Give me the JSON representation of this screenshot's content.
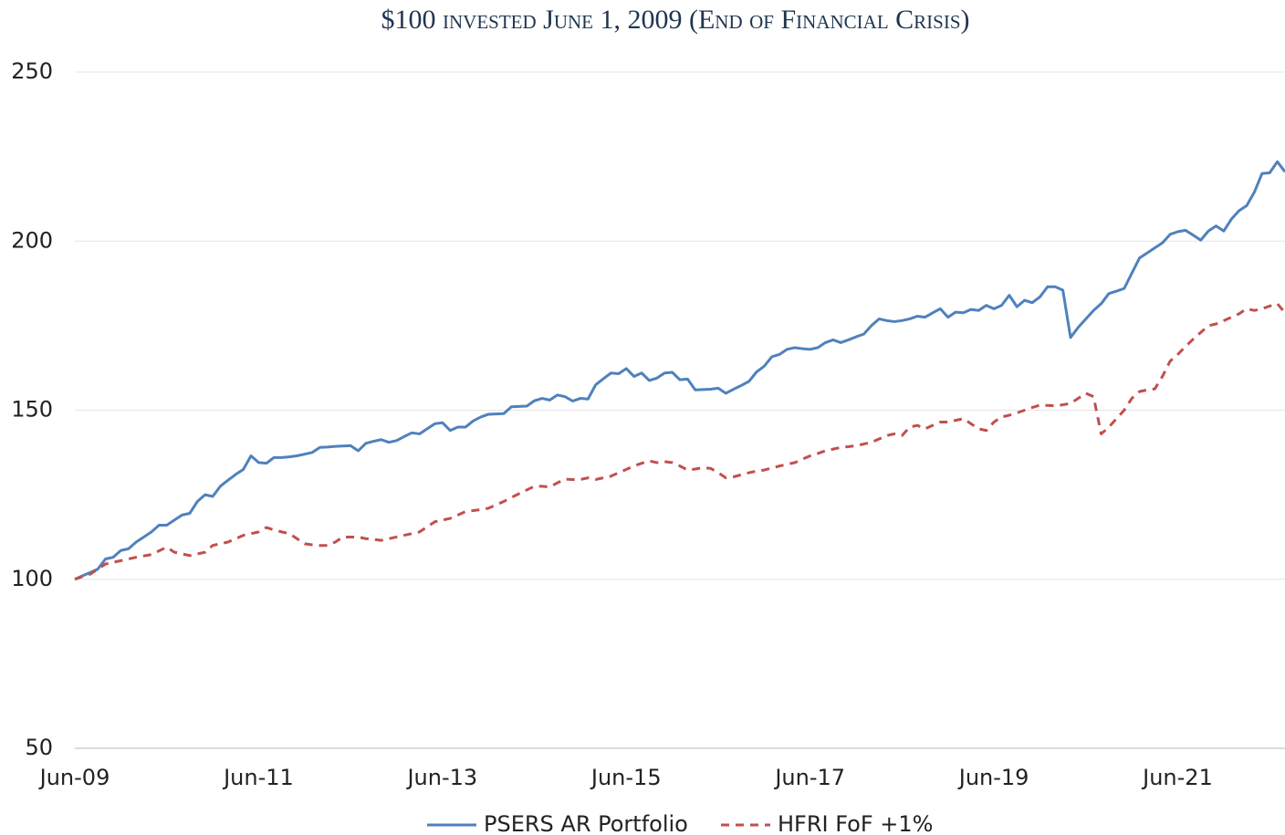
{
  "chart_data": {
    "type": "line",
    "title": "$100 invested June 1, 2009 (End of Financial Crisis)",
    "categories": [
      "Jun-09",
      null,
      null,
      null,
      null,
      null,
      null,
      null,
      null,
      null,
      null,
      null,
      null,
      null,
      null,
      null,
      null,
      null,
      null,
      null,
      null,
      null,
      null,
      null,
      "Jun-11",
      null,
      null,
      null,
      null,
      null,
      null,
      null,
      null,
      null,
      null,
      null,
      null,
      null,
      null,
      null,
      null,
      null,
      null,
      null,
      null,
      null,
      null,
      null,
      "Jun-13",
      null,
      null,
      null,
      null,
      null,
      null,
      null,
      null,
      null,
      null,
      null,
      null,
      null,
      null,
      null,
      null,
      null,
      null,
      null,
      null,
      null,
      null,
      null,
      "Jun-15",
      null,
      null,
      null,
      null,
      null,
      null,
      null,
      null,
      null,
      null,
      null,
      null,
      null,
      null,
      null,
      null,
      null,
      null,
      null,
      null,
      null,
      null,
      null,
      "Jun-17",
      null,
      null,
      null,
      null,
      null,
      null,
      null,
      null,
      null,
      null,
      null,
      null,
      null,
      null,
      null,
      null,
      null,
      null,
      null,
      null,
      null,
      null,
      null,
      "Jun-19",
      null,
      null,
      null,
      null,
      null,
      null,
      null,
      null,
      null,
      null,
      null,
      null,
      null,
      null,
      null,
      null,
      null,
      null,
      null,
      null,
      null,
      null,
      null,
      "Jun-21",
      null,
      null,
      null,
      null,
      null,
      null,
      null,
      null,
      null,
      null,
      null,
      null,
      null,
      null
    ],
    "series": [
      {
        "name": "PSERS AR Portfolio",
        "color": "#4f81bd",
        "style": "solid",
        "values": [
          100,
          101,
          102,
          103,
          106,
          106.5,
          108.5,
          109,
          111,
          112.5,
          114,
          116,
          116,
          117.5,
          119,
          119.5,
          123,
          125,
          124.5,
          127.5,
          129.3,
          131,
          132.5,
          136.5,
          134.5,
          134.3,
          136,
          136,
          136.2,
          136.5,
          137,
          137.5,
          139,
          139.1,
          139.3,
          139.4,
          139.5,
          138,
          140.2,
          140.8,
          141.3,
          140.5,
          141,
          142.2,
          143.3,
          143,
          144.5,
          146,
          146.3,
          144,
          145,
          145,
          146.8,
          148,
          148.8,
          148.9,
          149,
          151,
          151.1,
          151.2,
          152.8,
          153.5,
          153,
          154.5,
          154,
          152.7,
          153.5,
          153.3,
          157.5,
          159.3,
          161,
          160.8,
          162.3,
          160,
          161,
          158.8,
          159.5,
          161,
          161.2,
          159,
          159.2,
          156,
          156.1,
          156.2,
          156.5,
          155,
          156.2,
          157.3,
          158.5,
          161.3,
          163,
          165.8,
          166.5,
          168,
          168.5,
          168.2,
          168,
          168.5,
          170,
          170.8,
          170,
          170.8,
          171.7,
          172.5,
          175,
          177,
          176.5,
          176.2,
          176.5,
          177,
          177.8,
          177.5,
          178.8,
          180,
          177.5,
          179,
          178.8,
          179.8,
          179.5,
          181,
          180,
          181,
          184,
          180.6,
          182.5,
          181.8,
          183.5,
          186.5,
          186.5,
          185.5,
          171.5,
          174.5,
          177,
          179.5,
          181.5,
          184.5,
          185.2,
          186,
          190.5,
          195,
          196.5,
          198,
          199.5,
          202,
          202.8,
          203.2,
          201.8,
          200.3,
          203,
          204.5,
          203,
          206.5,
          209,
          210.5,
          214.5,
          220,
          220.2,
          223.5,
          220.5
        ]
      },
      {
        "name": "HFRI FoF +1%",
        "color": "#c0504d",
        "style": "dashed",
        "values": [
          100,
          100.8,
          101.5,
          103,
          104.5,
          105,
          105.5,
          106,
          106.5,
          106.9,
          107.3,
          108.4,
          109.5,
          108,
          107.5,
          107,
          107.5,
          108,
          110,
          110.5,
          111,
          112,
          113,
          113.5,
          114,
          115.3,
          114.6,
          114,
          113.5,
          112,
          110.5,
          110.2,
          110,
          110,
          111,
          112.5,
          112.5,
          112.5,
          112,
          111.8,
          111.5,
          112,
          112.5,
          113,
          113.5,
          114,
          115.5,
          117,
          117.5,
          118,
          119,
          120,
          120.3,
          120.6,
          121,
          122,
          123,
          124.2,
          125.3,
          126.4,
          127.5,
          127.5,
          127.3,
          128.5,
          129.6,
          129.5,
          129.5,
          130,
          129.5,
          130,
          130.5,
          131.5,
          132.5,
          133.5,
          134.3,
          135,
          134.5,
          134.8,
          134.5,
          133.5,
          132.3,
          132.6,
          133,
          132.8,
          131.5,
          130,
          130.3,
          130.9,
          131.5,
          132,
          132.3,
          132.9,
          133.5,
          134,
          134.5,
          135.5,
          136.5,
          137.2,
          138,
          138.5,
          139,
          139.2,
          139.5,
          140,
          140.5,
          141.5,
          142.5,
          143,
          142.5,
          145,
          145.5,
          144.5,
          145.5,
          146.5,
          146.5,
          147,
          147.5,
          146,
          144.5,
          144,
          146.5,
          148,
          148.5,
          149.2,
          150,
          150.8,
          151.5,
          151.4,
          151.3,
          151.6,
          152,
          153.5,
          155,
          154,
          143,
          145,
          147.5,
          150,
          153.5,
          155.5,
          156,
          156.3,
          160,
          164.5,
          166.5,
          168.8,
          171,
          173,
          175,
          175.5,
          176.5,
          177.5,
          178.5,
          180,
          179.5,
          180,
          180.8,
          181.5,
          178.8
        ]
      }
    ],
    "ylim": [
      50,
      250
    ],
    "yticks": [
      50,
      100,
      150,
      200,
      250
    ],
    "grid": true,
    "legend": "bottom"
  }
}
